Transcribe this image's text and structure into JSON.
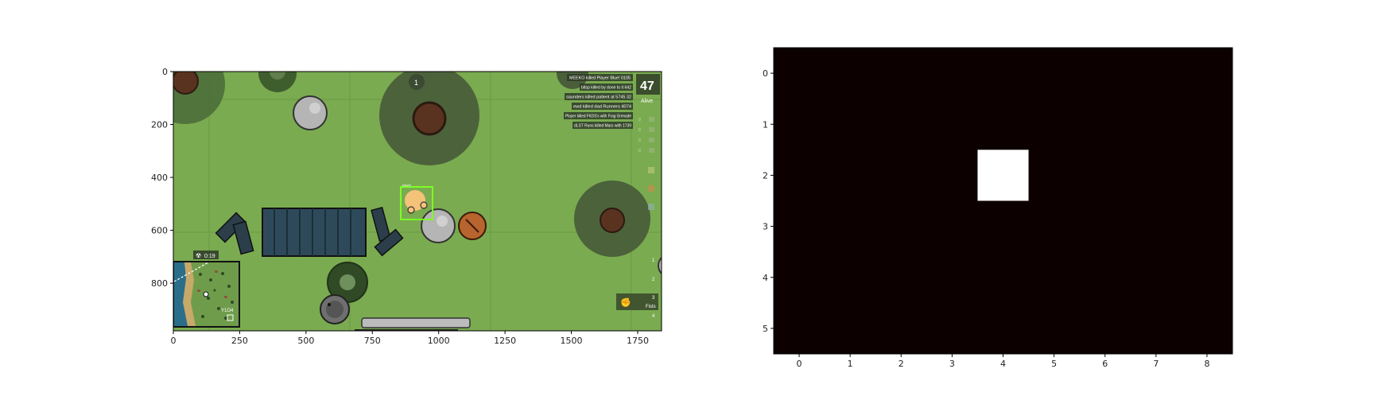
{
  "left_plot": {
    "x_ticks": [
      "0",
      "250",
      "500",
      "750",
      "1000",
      "1250",
      "1500",
      "1750"
    ],
    "y_ticks": [
      "0",
      "200",
      "400",
      "600",
      "800"
    ],
    "x_tick_values": [
      0,
      250,
      500,
      750,
      1000,
      1250,
      1500,
      1750
    ],
    "y_tick_values": [
      0,
      200,
      400,
      600,
      800
    ],
    "x_range": [
      0,
      1840
    ],
    "y_range": [
      980,
      0
    ],
    "game": {
      "alive_count": "47",
      "alive_label": "Alive",
      "kill_feed": [
        "MEEKO killed Player Blue! 0105",
        "bitsp killed by done to it 642",
        "saunders killed patient at 5745 32",
        "ewd killed dad Runners 4074",
        "Player killed FKDS's with Frag Grenade",
        "dLST Runs killed Mars with 1739"
      ],
      "zone_timer": "0:19",
      "ammo_counts": [
        "0",
        "0",
        "0",
        "0"
      ],
      "weapon_slots": [
        "1",
        "2",
        "3",
        "4"
      ],
      "weapon_label": "Fists",
      "kills_badge": "1",
      "player_name": "player",
      "minimap_label": "Y1O4"
    }
  },
  "right_plot": {
    "x_ticks": [
      "0",
      "1",
      "2",
      "3",
      "4",
      "5",
      "6",
      "7",
      "8"
    ],
    "y_ticks": [
      "0",
      "1",
      "2",
      "3",
      "4",
      "5"
    ],
    "grid_cols": 9,
    "grid_rows": 6,
    "highlight_cell": {
      "col": 4,
      "row": 2
    },
    "cell_color": "#0d0000",
    "highlight_color": "#ffffff"
  }
}
